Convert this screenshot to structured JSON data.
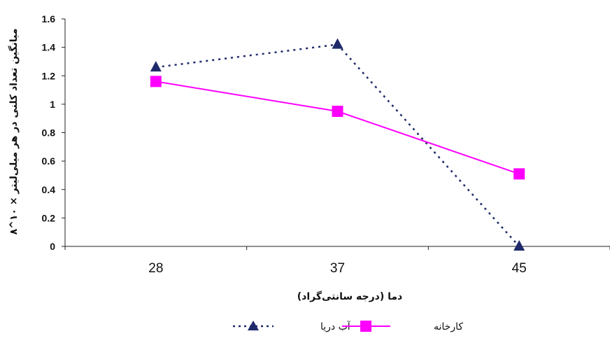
{
  "chart_data": {
    "type": "line",
    "categories": [
      "28",
      "37",
      "45"
    ],
    "yticks": [
      "0",
      "0.2",
      "0.4",
      "0.6",
      "0.8",
      "1",
      "1.2",
      "1.4",
      "1.6"
    ],
    "ylim": [
      0,
      1.6
    ],
    "xlabel": "دما (درجه سانتی‌گراد)",
    "ylabel": "میانگین تعداد کلنی در هر میلی‌لیتر × ۱۰^۸",
    "grid": false,
    "legend_position": "bottom",
    "series": [
      {
        "name": "آب دریا",
        "values": [
          1.26,
          1.42,
          0
        ],
        "color": "#1f2a6b",
        "marker": "triangle",
        "line": "dotted"
      },
      {
        "name": "کارخانه",
        "values": [
          1.16,
          0.95,
          0.51
        ],
        "color": "#ff00ff",
        "marker": "square",
        "line": "solid"
      }
    ]
  }
}
